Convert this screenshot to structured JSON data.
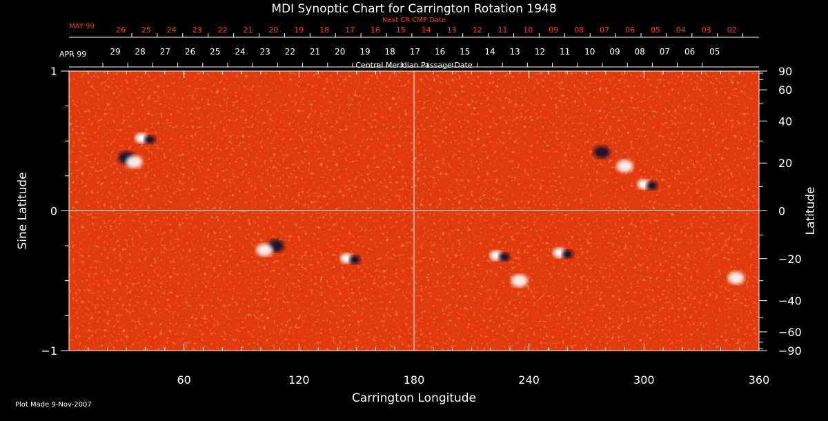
{
  "chart_data": {
    "type": "heatmap",
    "title": "MDI Synoptic Chart for Carrington Rotation 1948",
    "xlabel": "Carrington Longitude",
    "ylabel_left": "Sine Latitude",
    "ylabel_right": "Latitude",
    "xlim": [
      0,
      360
    ],
    "ylim": [
      -1,
      1
    ],
    "x_ticks": [
      60,
      120,
      180,
      240,
      300,
      360
    ],
    "y_ticks_left": [
      {
        "v": 1,
        "label": "1"
      },
      {
        "v": 0,
        "label": "0"
      },
      {
        "v": -1,
        "label": "−1"
      }
    ],
    "y_ticks_right": [
      90,
      60,
      40,
      20,
      0,
      -20,
      -40,
      -60,
      -90
    ],
    "top_axis_title": "Central Meridian Passage Date",
    "top_axis_month": "APR 99",
    "top_axis_days": [
      "29",
      "28",
      "27",
      "26",
      "25",
      "24",
      "23",
      "22",
      "21",
      "20",
      "19",
      "18",
      "17",
      "16",
      "15",
      "14",
      "13",
      "12",
      "11",
      "10",
      "09",
      "08",
      "07",
      "06",
      "05"
    ],
    "next_axis_title": "Next CR CMP Date",
    "next_axis_month": "MAY 99",
    "next_axis_days": [
      "26",
      "25",
      "24",
      "23",
      "22",
      "21",
      "20",
      "19",
      "18",
      "17",
      "16",
      "15",
      "14",
      "13",
      "12",
      "11",
      "10",
      "09",
      "08",
      "07",
      "06",
      "05",
      "04",
      "03",
      "02"
    ],
    "magnetic_regions": [
      {
        "lon": 30,
        "lat": 0.38,
        "polarity": "negative"
      },
      {
        "lon": 34,
        "lat": 0.35,
        "polarity": "positive"
      },
      {
        "lon": 40,
        "lat": 0.52,
        "polarity": "mixed"
      },
      {
        "lon": 108,
        "lat": -0.25,
        "polarity": "negative"
      },
      {
        "lon": 102,
        "lat": -0.28,
        "polarity": "positive"
      },
      {
        "lon": 147,
        "lat": -0.34,
        "polarity": "mixed"
      },
      {
        "lon": 278,
        "lat": 0.42,
        "polarity": "negative"
      },
      {
        "lon": 290,
        "lat": 0.32,
        "polarity": "positive"
      },
      {
        "lon": 302,
        "lat": 0.19,
        "polarity": "mixed"
      },
      {
        "lon": 225,
        "lat": -0.32,
        "polarity": "mixed"
      },
      {
        "lon": 235,
        "lat": -0.5,
        "polarity": "positive"
      },
      {
        "lon": 258,
        "lat": -0.3,
        "polarity": "mixed"
      },
      {
        "lon": 348,
        "lat": -0.48,
        "polarity": "positive"
      }
    ],
    "colors": {
      "background": "#000000",
      "field": "#e23a0c",
      "positive": "#ffffff",
      "negative": "#10102e",
      "next_axis": "#ff3b1a"
    }
  },
  "footer": {
    "plot_made": "Plot Made  9-Nov-2007"
  }
}
